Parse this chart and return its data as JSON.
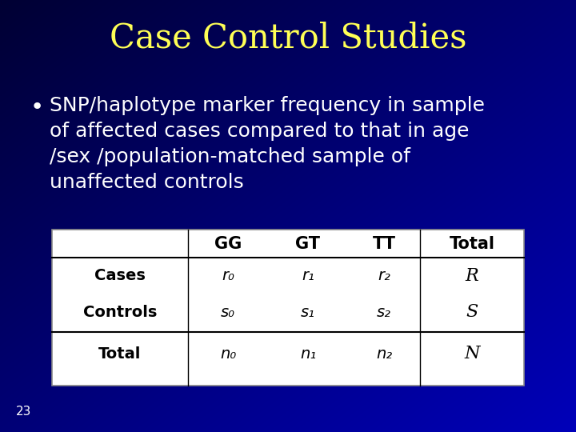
{
  "title": "Case Control Studies",
  "title_color": "#FFFF55",
  "title_fontsize": 30,
  "bullet_text_lines": [
    "SNP/haplotype marker frequency in sample",
    "of affected cases compared to that in age",
    "/sex /population-matched sample of",
    "unaffected controls"
  ],
  "bullet_color": "#FFFFFF",
  "bullet_fontsize": 18,
  "table_header": [
    "GG",
    "GT",
    "TT",
    "Total"
  ],
  "table_rows": [
    [
      "Cases",
      "r₀",
      "r₁",
      "r₂",
      "R"
    ],
    [
      "Controls",
      "s₀",
      "s₁",
      "s₂",
      "S"
    ],
    [
      "Total",
      "n₀",
      "n₁",
      "n₂",
      "N"
    ]
  ],
  "page_number": "23",
  "page_number_color": "#FFFFFF",
  "page_number_fontsize": 11,
  "bg_color_topleft": "#000033",
  "bg_color_bottomright": "#0033BB"
}
